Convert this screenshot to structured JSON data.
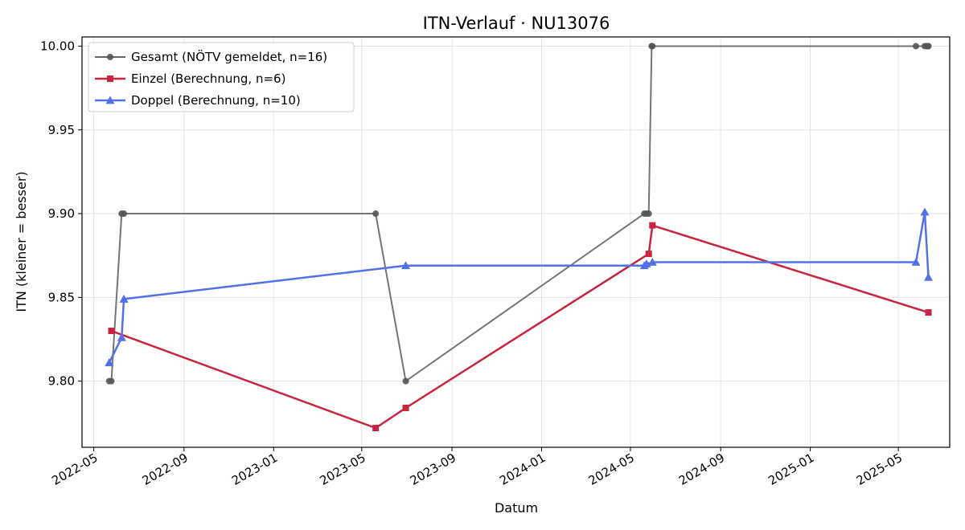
{
  "chart_data": {
    "type": "line",
    "title": "ITN-Verlauf · NU13076",
    "xlabel": "Datum",
    "ylabel": "ITN  (kleiner = besser)",
    "x_ticks": [
      "2022-05",
      "2022-09",
      "2023-01",
      "2023-05",
      "2023-09",
      "2024-01",
      "2024-05",
      "2024-09",
      "2025-01",
      "2025-05"
    ],
    "y_ticks": [
      "9.80",
      "9.85",
      "9.90",
      "9.95",
      "10.00"
    ],
    "xlim": [
      "2022-04-15",
      "2025-07-10"
    ],
    "ylim": [
      9.7605,
      10.0055
    ],
    "grid": true,
    "legend_position": "top-left",
    "series": [
      {
        "name": "Gesamt (NÖTV gemeldet, n=16)",
        "color": "#666666",
        "marker": "circle",
        "x": [
          "2022-05-22",
          "2022-05-25",
          "2022-06-08",
          "2022-06-11",
          "2023-05-20",
          "2023-06-30",
          "2024-05-20",
          "2024-05-23",
          "2024-05-26",
          "2024-05-30",
          "2024-05-31",
          "2025-05-25",
          "2025-06-06",
          "2025-06-09",
          "2025-06-10",
          "2025-06-11"
        ],
        "y": [
          9.8,
          9.8,
          9.9,
          9.9,
          9.9,
          9.8,
          9.9,
          9.9,
          9.9,
          10.0,
          10.0,
          10.0,
          10.0,
          10.0,
          10.0,
          10.0
        ]
      },
      {
        "name": "Einzel (Berechnung, n=6)",
        "color": "#c8243f",
        "marker": "square",
        "x": [
          "2022-05-25",
          "2023-05-20",
          "2023-06-30",
          "2024-05-26",
          "2024-05-31",
          "2025-06-11"
        ],
        "y": [
          9.83,
          9.772,
          9.784,
          9.876,
          9.893,
          9.841
        ]
      },
      {
        "name": "Doppel (Berechnung, n=10)",
        "color": "#5470e8",
        "marker": "triangle",
        "x": [
          "2022-05-22",
          "2022-06-08",
          "2022-06-11",
          "2023-06-30",
          "2024-05-20",
          "2024-05-23",
          "2024-05-31",
          "2025-05-25",
          "2025-06-06",
          "2025-06-11"
        ],
        "y": [
          9.811,
          9.826,
          9.849,
          9.869,
          9.869,
          9.87,
          9.871,
          9.871,
          9.901,
          9.862
        ]
      }
    ]
  }
}
